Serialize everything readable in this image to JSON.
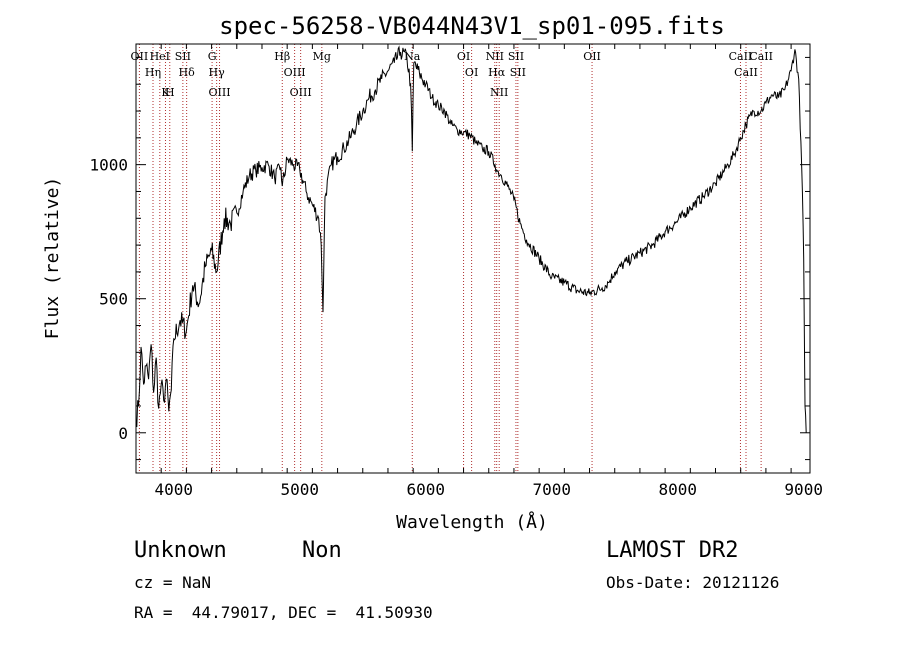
{
  "chart_data": {
    "type": "line",
    "title": "spec-56258-VB044N43V1_sp01-095.fits",
    "xlabel": "Wavelength (Å)",
    "ylabel": "Flux (relative)",
    "xlim": [
      3700,
      9050
    ],
    "ylim": [
      -150,
      1450
    ],
    "xticks": [
      4000,
      5000,
      6000,
      7000,
      8000,
      9000
    ],
    "yticks": [
      0,
      500,
      1000
    ],
    "grid": false,
    "series": [
      {
        "x": [
          3700,
          3720,
          3740,
          3760,
          3780,
          3800,
          3820,
          3840,
          3860,
          3880,
          3900,
          3920,
          3940,
          3960,
          3980,
          4000,
          4050,
          4100,
          4150,
          4200,
          4250,
          4300,
          4340,
          4400,
          4450,
          4500,
          4550,
          4600,
          4650,
          4700,
          4750,
          4800,
          4850,
          4861,
          4900,
          4950,
          5000,
          5050,
          5100,
          5150,
          5170,
          5184,
          5200,
          5250,
          5300,
          5350,
          5400,
          5450,
          5500,
          5550,
          5600,
          5650,
          5700,
          5750,
          5800,
          5850,
          5880,
          5893,
          5905,
          5950,
          6000,
          6050,
          6100,
          6150,
          6200,
          6250,
          6300,
          6350,
          6400,
          6450,
          6500,
          6550,
          6563,
          6600,
          6650,
          6700,
          6750,
          6800,
          6900,
          7000,
          7100,
          7200,
          7300,
          7400,
          7450,
          7500,
          7600,
          7700,
          7800,
          7900,
          8000,
          8100,
          8200,
          8300,
          8400,
          8450,
          8500,
          8542,
          8600,
          8662,
          8700,
          8750,
          8800,
          8850,
          8900,
          8930,
          8960,
          8990,
          9000,
          9010,
          9020
        ],
        "y": [
          50,
          100,
          320,
          180,
          250,
          200,
          330,
          150,
          280,
          90,
          180,
          120,
          200,
          80,
          160,
          350,
          420,
          380,
          550,
          480,
          620,
          680,
          600,
          800,
          780,
          820,
          900,
          960,
          980,
          990,
          1000,
          950,
          990,
          920,
          1020,
          1000,
          980,
          900,
          850,
          800,
          700,
          450,
          880,
          1000,
          1030,
          1060,
          1100,
          1150,
          1200,
          1250,
          1280,
          1320,
          1350,
          1380,
          1420,
          1400,
          1300,
          1050,
          1380,
          1340,
          1300,
          1250,
          1220,
          1200,
          1150,
          1130,
          1120,
          1110,
          1080,
          1060,
          1050,
          1000,
          980,
          960,
          920,
          870,
          780,
          720,
          650,
          580,
          560,
          530,
          520,
          540,
          560,
          600,
          640,
          670,
          700,
          750,
          790,
          840,
          880,
          930,
          1000,
          1040,
          1100,
          1150,
          1200,
          1200,
          1230,
          1260,
          1250,
          1280,
          1350,
          1430,
          1320,
          900,
          650,
          100,
          0
        ]
      }
    ],
    "lines": [
      {
        "x": 3727,
        "labels": [
          "OII"
        ]
      },
      {
        "x": 3835,
        "labels": [
          "Hη"
        ]
      },
      {
        "x": 3889,
        "labels": [
          "HeI"
        ]
      },
      {
        "x": 3934,
        "labels": [
          "K"
        ]
      },
      {
        "x": 3968,
        "labels": [
          "H"
        ]
      },
      {
        "x": 4072,
        "labels": [
          "SII"
        ]
      },
      {
        "x": 4102,
        "labels": [
          "Hδ"
        ]
      },
      {
        "x": 4304,
        "labels": [
          "G"
        ]
      },
      {
        "x": 4340,
        "labels": [
          "Hγ"
        ]
      },
      {
        "x": 4363,
        "labels": [
          "OIII"
        ]
      },
      {
        "x": 4861,
        "labels": [
          "Hβ"
        ]
      },
      {
        "x": 4959,
        "labels": [
          "OIII"
        ]
      },
      {
        "x": 5007,
        "labels": [
          "OIII"
        ]
      },
      {
        "x": 5175,
        "labels": [
          "Mg"
        ]
      },
      {
        "x": 5893,
        "labels": [
          "Na"
        ]
      },
      {
        "x": 6300,
        "labels": [
          "OI"
        ]
      },
      {
        "x": 6364,
        "labels": [
          "OI"
        ]
      },
      {
        "x": 6548,
        "labels": [
          "NII"
        ]
      },
      {
        "x": 6563,
        "labels": [
          "Hα"
        ]
      },
      {
        "x": 6583,
        "labels": [
          "NII"
        ]
      },
      {
        "x": 6716,
        "labels": [
          "SII"
        ]
      },
      {
        "x": 6731,
        "labels": [
          "SII"
        ]
      },
      {
        "x": 7320,
        "labels": [
          "OII"
        ]
      },
      {
        "x": 8498,
        "labels": [
          "CaII"
        ]
      },
      {
        "x": 8542,
        "labels": [
          "CaII"
        ]
      },
      {
        "x": 8662,
        "labels": [
          "CaII"
        ]
      }
    ]
  },
  "info": {
    "class": "Unknown",
    "subclass": "Non",
    "cz": "cz = NaN",
    "radec": "RA =  44.79017, DEC =  41.50930",
    "survey": "LAMOST DR2",
    "obsdate": "Obs-Date: 20121126"
  }
}
